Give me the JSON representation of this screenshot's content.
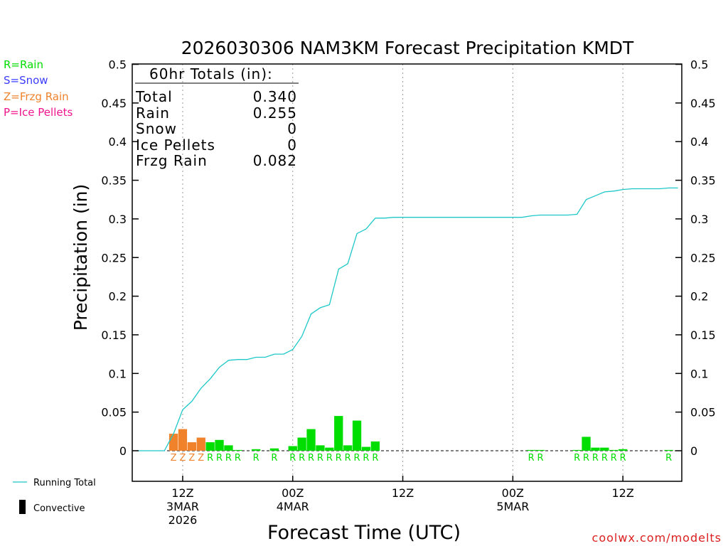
{
  "chart_data": {
    "type": "bar",
    "title": "2026030306 NAM3KM Forecast Precipitation KMDT",
    "xlabel": "Forecast Time (UTC)",
    "ylabel": "Precipitation (in)",
    "ylim": [
      -0.04,
      0.5
    ],
    "yticks": [
      0,
      0.05,
      0.1,
      0.15,
      0.2,
      0.25,
      0.3,
      0.35,
      0.4,
      0.45,
      0.5
    ],
    "ytick_labels": [
      "0",
      "0.05",
      "0.1",
      "0.15",
      "0.2",
      "0.25",
      "0.3",
      "0.35",
      "0.4",
      "0.45",
      "0.5"
    ],
    "xlim_hours": [
      6,
      66
    ],
    "xticks": [
      {
        "hour": 12,
        "lines": [
          "12Z",
          "3MAR",
          "2026"
        ]
      },
      {
        "hour": 24,
        "lines": [
          "00Z",
          "4MAR"
        ]
      },
      {
        "hour": 36,
        "lines": [
          "12Z"
        ]
      },
      {
        "hour": 48,
        "lines": [
          "00Z",
          "5MAR"
        ]
      },
      {
        "hour": 60,
        "lines": [
          "12Z"
        ]
      }
    ],
    "legend_types": [
      {
        "code": "R",
        "label": "R=Rain",
        "color": "#00dd00"
      },
      {
        "code": "S",
        "label": "S=Snow",
        "color": "#3c3cff"
      },
      {
        "code": "Z",
        "label": "Z=Frzg Rain",
        "color": "#f0822b"
      },
      {
        "code": "P",
        "label": "P=Ice Pellets",
        "color": "#f0148c"
      }
    ],
    "legend_lines": [
      {
        "label": "Running Total",
        "color": "#1ec8c8"
      },
      {
        "label": "Convective",
        "color": "#000000"
      }
    ],
    "totals": {
      "header": "60hr Totals (in):",
      "rows": [
        {
          "label": "Total",
          "value": "0.340"
        },
        {
          "label": "Rain",
          "value": "0.255"
        },
        {
          "label": "Snow",
          "value": "0"
        },
        {
          "label": "Ice Pellets",
          "value": "0"
        },
        {
          "label": "Frzg Rain",
          "value": "0.082"
        }
      ]
    },
    "bars": [
      {
        "hour": 11,
        "value": 0.022,
        "type": "Z"
      },
      {
        "hour": 12,
        "value": 0.028,
        "type": "Z"
      },
      {
        "hour": 13,
        "value": 0.011,
        "type": "Z"
      },
      {
        "hour": 14,
        "value": 0.017,
        "type": "Z"
      },
      {
        "hour": 15,
        "value": 0.011,
        "type": "R"
      },
      {
        "hour": 16,
        "value": 0.014,
        "type": "R"
      },
      {
        "hour": 17,
        "value": 0.007,
        "type": "R"
      },
      {
        "hour": 18,
        "value": 0.001,
        "type": "R"
      },
      {
        "hour": 20,
        "value": 0.002,
        "type": "R"
      },
      {
        "hour": 22,
        "value": 0.003,
        "type": "R"
      },
      {
        "hour": 24,
        "value": 0.006,
        "type": "R"
      },
      {
        "hour": 25,
        "value": 0.017,
        "type": "R"
      },
      {
        "hour": 26,
        "value": 0.028,
        "type": "R"
      },
      {
        "hour": 27,
        "value": 0.007,
        "type": "R"
      },
      {
        "hour": 28,
        "value": 0.004,
        "type": "R"
      },
      {
        "hour": 29,
        "value": 0.045,
        "type": "R"
      },
      {
        "hour": 30,
        "value": 0.007,
        "type": "R"
      },
      {
        "hour": 31,
        "value": 0.039,
        "type": "R"
      },
      {
        "hour": 32,
        "value": 0.005,
        "type": "R"
      },
      {
        "hour": 33,
        "value": 0.012,
        "type": "R"
      },
      {
        "hour": 50,
        "value": 0.001,
        "type": "R"
      },
      {
        "hour": 51,
        "value": 0.001,
        "type": "R"
      },
      {
        "hour": 55,
        "value": 0.001,
        "type": "R"
      },
      {
        "hour": 56,
        "value": 0.018,
        "type": "R"
      },
      {
        "hour": 57,
        "value": 0.004,
        "type": "R"
      },
      {
        "hour": 58,
        "value": 0.004,
        "type": "R"
      },
      {
        "hour": 59,
        "value": 0.001,
        "type": "R"
      },
      {
        "hour": 60,
        "value": 0.002,
        "type": "R"
      },
      {
        "hour": 65,
        "value": 0.001,
        "type": "R"
      }
    ],
    "running_total": {
      "hours": [
        7,
        10,
        11,
        12,
        13,
        14,
        15,
        16,
        17,
        18,
        19,
        20,
        21,
        22,
        23,
        24,
        25,
        26,
        27,
        28,
        29,
        30,
        31,
        32,
        33,
        34,
        35,
        36,
        47,
        49,
        50,
        51,
        52,
        53,
        54,
        55,
        56,
        57,
        58,
        59,
        60,
        61,
        62,
        63,
        64,
        65,
        66
      ],
      "values": [
        0,
        0,
        0.022,
        0.053,
        0.064,
        0.081,
        0.093,
        0.108,
        0.117,
        0.118,
        0.118,
        0.121,
        0.121,
        0.125,
        0.125,
        0.131,
        0.148,
        0.177,
        0.185,
        0.189,
        0.235,
        0.242,
        0.281,
        0.287,
        0.301,
        0.301,
        0.302,
        0.302,
        0.302,
        0.302,
        0.304,
        0.305,
        0.305,
        0.305,
        0.305,
        0.306,
        0.325,
        0.33,
        0.335,
        0.336,
        0.338,
        0.339,
        0.339,
        0.339,
        0.339,
        0.34,
        0.34
      ]
    },
    "credit": "coolwx.com/modelts"
  }
}
